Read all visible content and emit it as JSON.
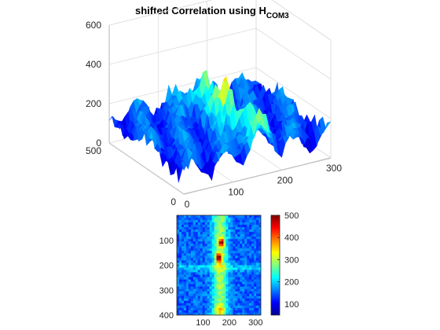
{
  "figure": {
    "title_main": "shifted Correlation using H",
    "title_subscript": "COM3",
    "background": "#ffffff",
    "axis_color": "#262626",
    "grid_color": "#dcdcdc"
  },
  "chart_data": [
    {
      "type": "surface",
      "title": "shifted Correlation using H_COM3",
      "xlabel": "",
      "ylabel": "",
      "zlabel": "",
      "xlim": [
        0,
        300
      ],
      "ylim": [
        0,
        500
      ],
      "zlim": [
        0,
        600
      ],
      "xticks": [
        "0",
        "100",
        "200",
        "300"
      ],
      "yticks": [
        "0",
        "500"
      ],
      "zticks": [
        "0",
        "200",
        "400",
        "600"
      ],
      "colormap": "jet",
      "grid": true,
      "surface_description": "noisy correlation surface, baseline ~100-200 with a ridge around x≈150-170 reaching a peak of about 480",
      "peak": {
        "x": 160,
        "y": 230,
        "z": 480
      }
    },
    {
      "type": "heatmap",
      "title": "",
      "xlabel": "",
      "ylabel": "",
      "xlim": [
        0,
        320
      ],
      "ylim": [
        0,
        400
      ],
      "xticks": [
        "100",
        "200",
        "300"
      ],
      "yticks": [
        "100",
        "200",
        "300",
        "400"
      ],
      "colormap": "jet",
      "colorbar": {
        "ticks": [
          "100",
          "200",
          "300",
          "400",
          "500"
        ],
        "range": [
          50,
          500
        ]
      }
    }
  ]
}
